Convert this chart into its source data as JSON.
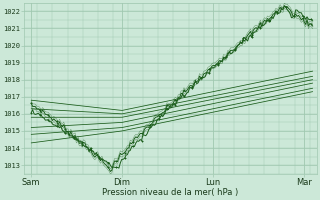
{
  "title": "",
  "xlabel": "Pression niveau de la mer( hPa )",
  "ylabel": "",
  "bg_color": "#cce8d8",
  "grid_color": "#a0c8b0",
  "line_color": "#1a5c1a",
  "ylim": [
    1012.5,
    1022.5
  ],
  "yticks": [
    1013,
    1014,
    1015,
    1016,
    1017,
    1018,
    1019,
    1020,
    1021,
    1022
  ],
  "xtick_labels": [
    "Sam",
    "Dim",
    "Lun",
    "Mar"
  ],
  "xtick_positions": [
    0,
    1,
    2,
    3
  ],
  "xlim": [
    -0.08,
    3.15
  ],
  "line_width": 0.7,
  "marker_size": 2.0
}
